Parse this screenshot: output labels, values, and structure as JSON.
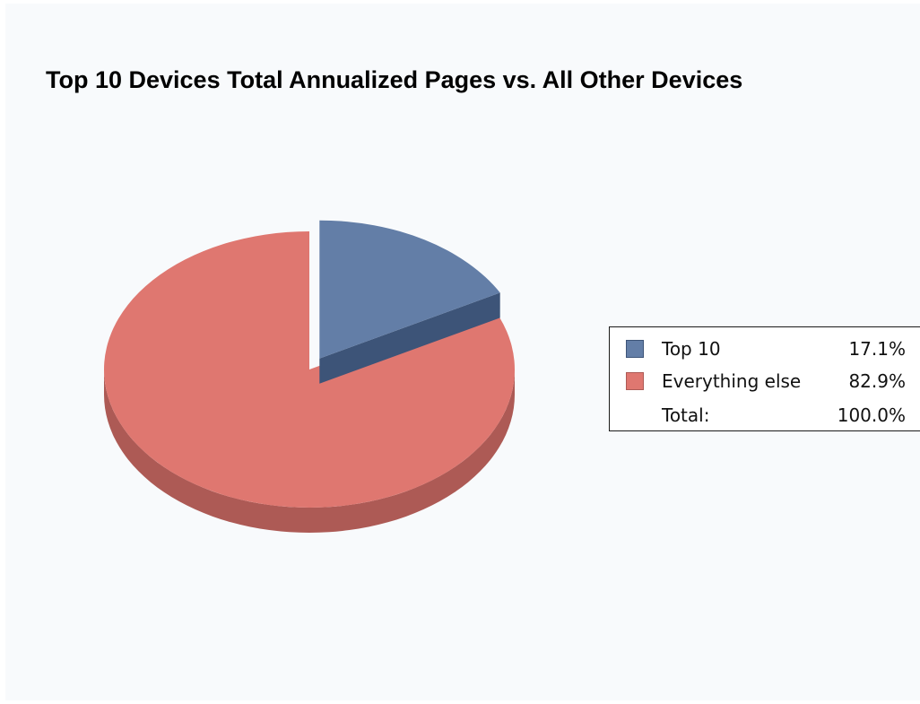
{
  "chart_data": {
    "type": "pie",
    "title": "Top 10 Devices Total Annualized Pages vs. All Other Devices",
    "slices": [
      {
        "label": "Top 10",
        "value": 17.1,
        "display": "17.1%",
        "color": "#637ea7",
        "side_color": "#3d5478",
        "exploded": true
      },
      {
        "label": "Everything else",
        "value": 82.9,
        "display": "82.9%",
        "color": "#df7770",
        "side_color": "#ad5a55",
        "exploded": false
      }
    ],
    "total": {
      "label": "Total:",
      "display": "100.0%"
    },
    "legend_position": "right",
    "three_d": true
  }
}
